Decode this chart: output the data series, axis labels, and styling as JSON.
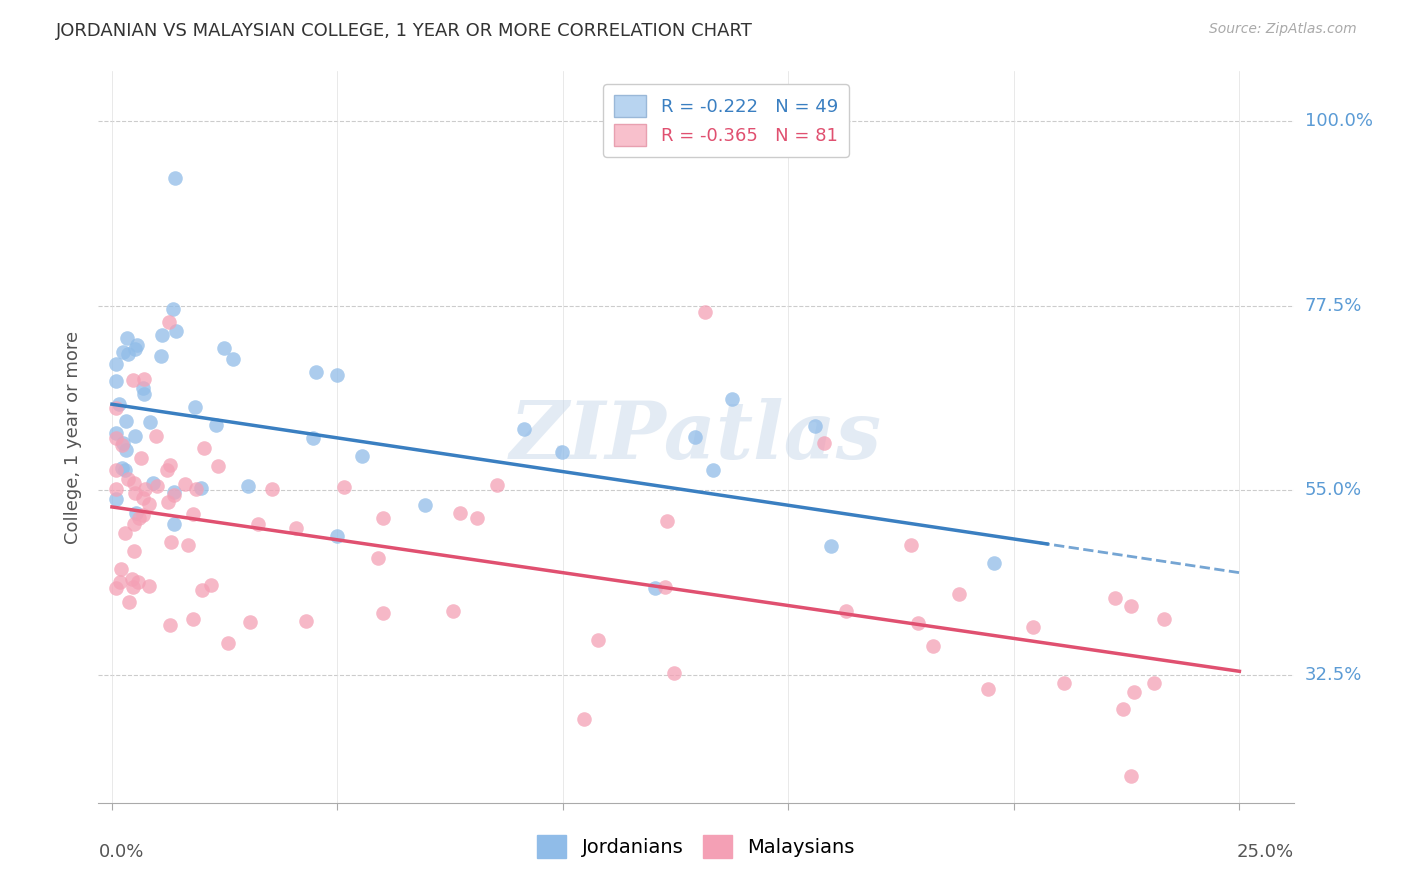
{
  "title": "JORDANIAN VS MALAYSIAN COLLEGE, 1 YEAR OR MORE CORRELATION CHART",
  "source": "Source: ZipAtlas.com",
  "ylabel": "College, 1 year or more",
  "y_tick_positions": [
    0.325,
    0.55,
    0.775,
    1.0
  ],
  "y_tick_labels": [
    "32.5%",
    "55.0%",
    "77.5%",
    "100.0%"
  ],
  "x_tick_positions": [
    0.0,
    0.05,
    0.1,
    0.15,
    0.2,
    0.25
  ],
  "jordanians_R": -0.222,
  "jordanians_N": 49,
  "malaysians_R": -0.365,
  "malaysians_N": 81,
  "dot_color_jordanians": "#90bce8",
  "dot_color_malaysians": "#f4a0b5",
  "line_color_jordanians": "#3a7fc1",
  "line_color_malaysians": "#e05070",
  "legend_fill_jordanians": "#b8d4f0",
  "legend_fill_malaysians": "#f8c0cc",
  "background_color": "#ffffff",
  "watermark": "ZIPatlas",
  "xlim": [
    -0.003,
    0.262
  ],
  "ylim": [
    0.17,
    1.06
  ],
  "jordanians_line_intercept": 0.655,
  "jordanians_line_slope": -0.8,
  "malaysians_line_intercept": 0.52,
  "malaysians_line_slope": -0.76
}
